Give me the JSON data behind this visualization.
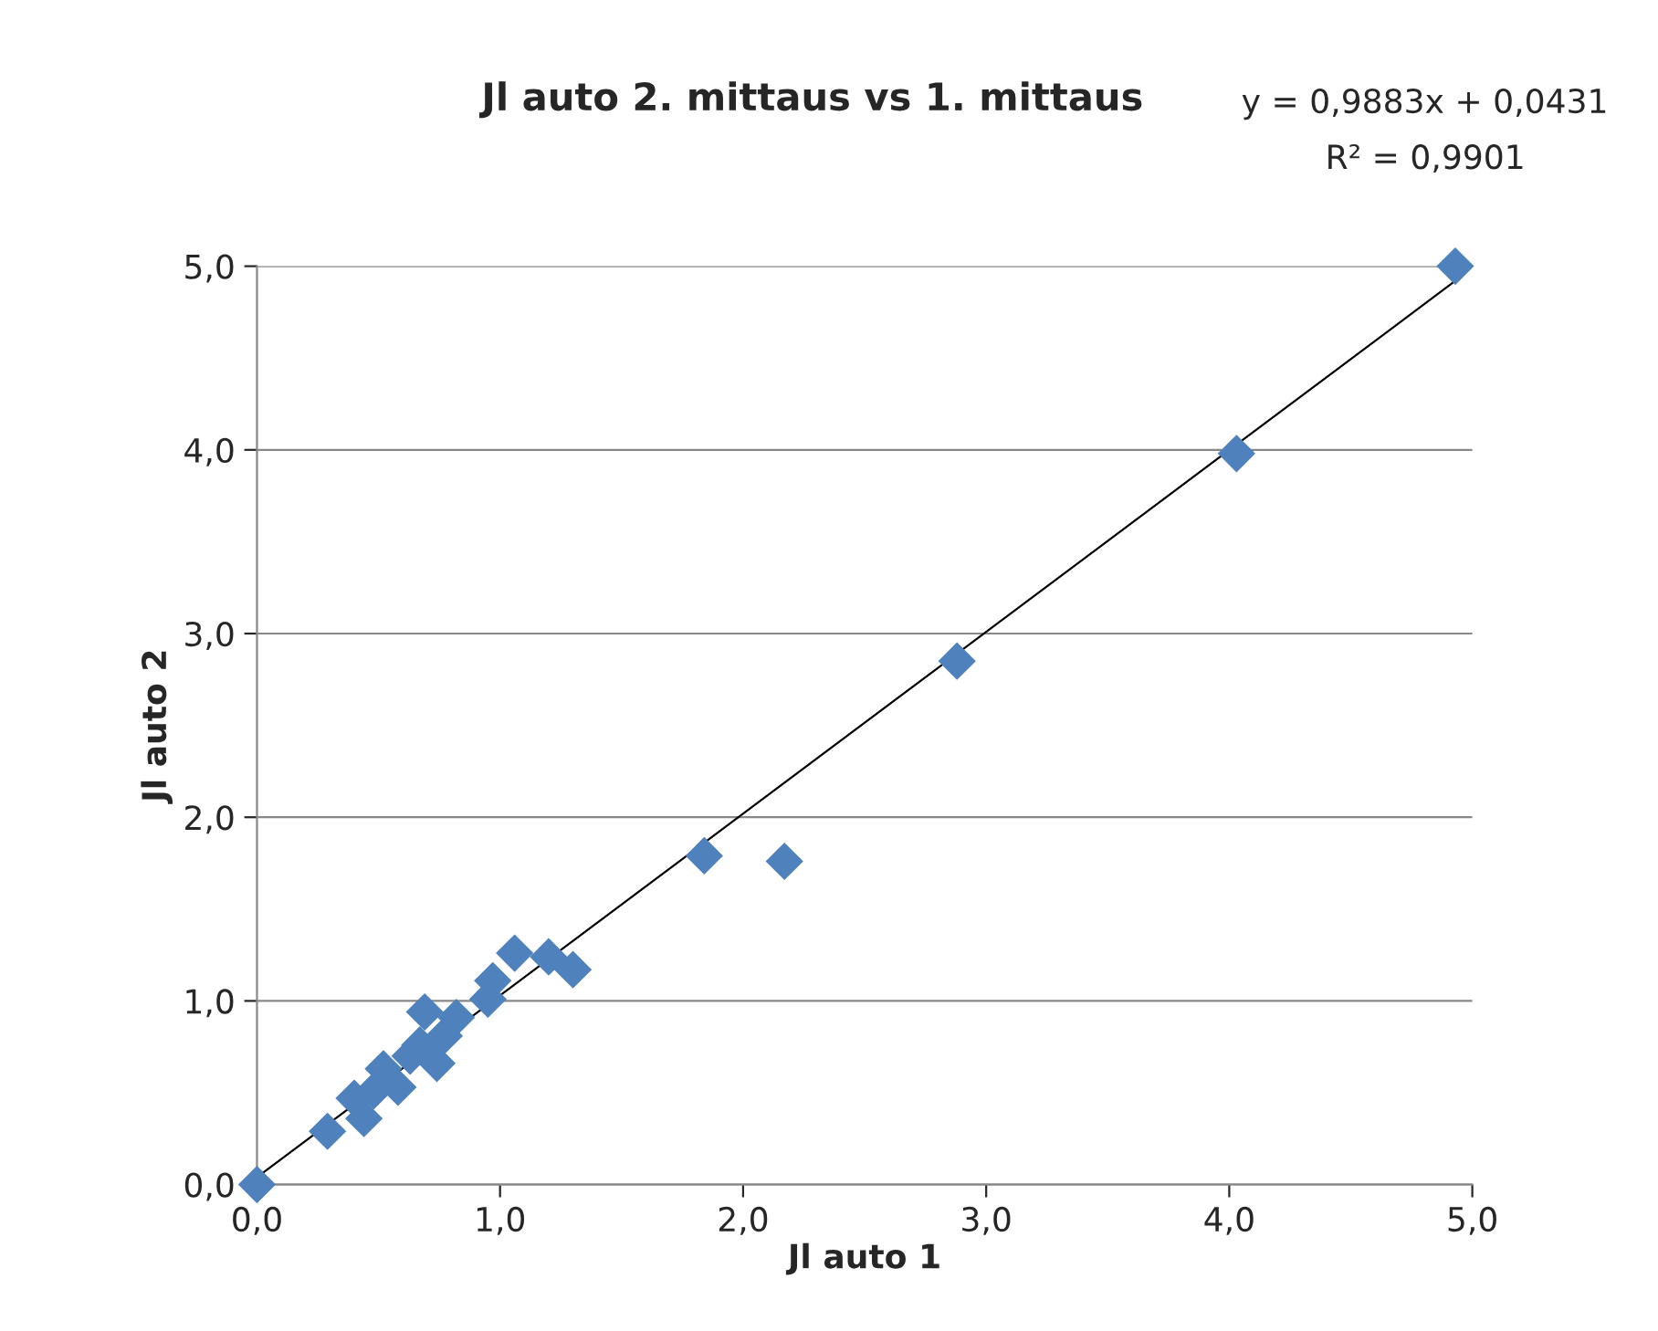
{
  "chart_data": {
    "type": "scatter",
    "title": "Jl auto 2. mittaus vs 1. mittaus",
    "xlabel": "Jl auto 1",
    "ylabel": "Jl auto 2",
    "annotations": [
      "y = 0,9883x + 0,0431",
      "R² = 0,9901"
    ],
    "series": [
      {
        "color": "#4f81bd",
        "marker": "diamond",
        "x": [
          0.0,
          0.29,
          0.4,
          0.44,
          0.48,
          0.52,
          0.58,
          0.63,
          0.69,
          0.67,
          0.74,
          0.77,
          0.82,
          0.95,
          0.97,
          1.06,
          1.2,
          1.3,
          1.84,
          2.17,
          2.88,
          4.03,
          4.93
        ],
        "values": [
          0.0,
          0.29,
          0.47,
          0.36,
          0.51,
          0.63,
          0.53,
          0.7,
          0.94,
          0.76,
          0.66,
          0.81,
          0.91,
          1.01,
          1.11,
          1.26,
          1.24,
          1.17,
          1.79,
          1.76,
          2.85,
          3.98,
          5.0
        ]
      },
      {
        "type": "line",
        "color": "#000000",
        "x": [
          0.0,
          4.93
        ],
        "values": [
          0.04,
          4.92
        ]
      }
    ],
    "xlim": [
      0,
      5
    ],
    "ylim": [
      0,
      5
    ],
    "xticks": [
      {
        "value": 0,
        "label": "0,0"
      },
      {
        "value": 1,
        "label": "1,0"
      },
      {
        "value": 2,
        "label": "2,0"
      },
      {
        "value": 3,
        "label": "3,0"
      },
      {
        "value": 4,
        "label": "4,0"
      },
      {
        "value": 5,
        "label": "5,0"
      }
    ],
    "yticks": [
      {
        "value": 0,
        "label": "0,0"
      },
      {
        "value": 1,
        "label": "1,0"
      },
      {
        "value": 2,
        "label": "2,0"
      },
      {
        "value": 3,
        "label": "3,0"
      },
      {
        "value": 4,
        "label": "4,0"
      },
      {
        "value": 5,
        "label": "5,0"
      }
    ],
    "grid": "y",
    "legend": false
  }
}
